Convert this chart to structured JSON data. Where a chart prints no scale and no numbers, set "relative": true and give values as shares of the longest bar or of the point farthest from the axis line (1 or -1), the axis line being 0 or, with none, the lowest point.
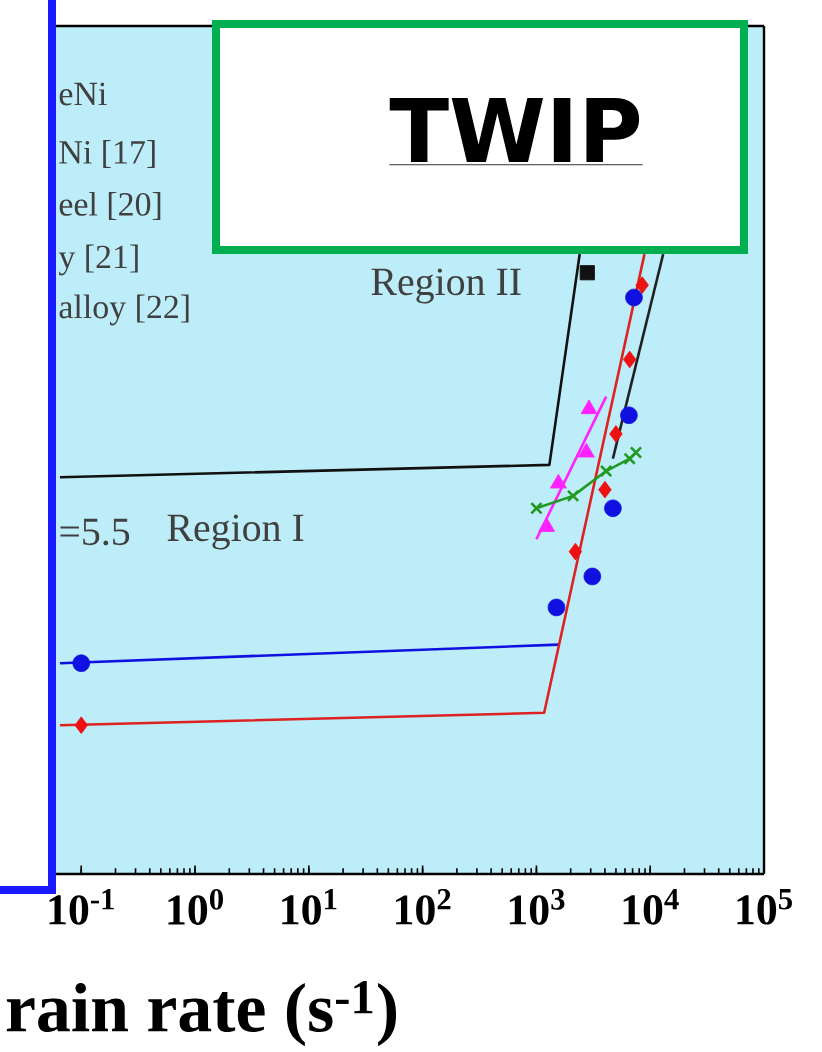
{
  "chart_data": {
    "type": "line",
    "relative": true,
    "log": "x",
    "tick_labels": "x",
    "xlabel": "rain rate (s$^{-1}$)",
    "xlim": [
      0.06,
      100000
    ],
    "xticks": [
      {
        "value": 0.1,
        "label": "10$^{-1}$"
      },
      {
        "value": 1,
        "label": "10$^{0}$"
      },
      {
        "value": 10,
        "label": "10$^{1}$"
      },
      {
        "value": 100,
        "label": "10$^{2}$"
      },
      {
        "value": 1000,
        "label": "10$^{3}$"
      },
      {
        "value": 10000,
        "label": "10$^{4}$"
      },
      {
        "value": 100000,
        "label": "10$^{5}$"
      }
    ],
    "annotations": [
      "eNi",
      "Ni [17]",
      "eel [20]",
      "y [21]",
      "alloy [22]",
      "=5.5",
      "Region I",
      "Region II",
      "TWIP"
    ],
    "series": [
      {
        "type": "line",
        "color": "#111111",
        "marker": "none",
        "x": [
          0.065,
          1300,
          2400
        ],
        "values": [
          0.64,
          0.66,
          1.0
        ]
      },
      {
        "type": "scatter",
        "color": "#111111",
        "marker": "square",
        "x": [
          2800
        ],
        "values": [
          0.97
        ]
      },
      {
        "type": "line",
        "color": "#1010e0",
        "marker": "none",
        "x": [
          0.065,
          1560
        ],
        "values": [
          0.34,
          0.37
        ]
      },
      {
        "type": "scatter",
        "color": "#1010e0",
        "marker": "circle",
        "x": [
          0.1,
          1500,
          3100,
          4700,
          6500,
          7200
        ],
        "values": [
          0.34,
          0.43,
          0.48,
          0.59,
          0.74,
          0.93
        ]
      },
      {
        "type": "line",
        "color": "#dd2222",
        "marker": "none",
        "x": [
          0.065,
          1170,
          8900
        ],
        "values": [
          0.24,
          0.26,
          1.0
        ]
      },
      {
        "type": "scatter",
        "color": "#ee1111",
        "marker": "diamond",
        "x": [
          0.1,
          2200,
          4000,
          5000,
          6600,
          8500
        ],
        "values": [
          0.24,
          0.52,
          0.62,
          0.71,
          0.83,
          0.95
        ]
      },
      {
        "type": "line",
        "color": "#222222",
        "marker": "none",
        "x": [
          4700,
          13000
        ],
        "values": [
          0.67,
          1.0
        ]
      },
      {
        "type": "line",
        "color": "#ff22ff",
        "marker": "none",
        "x": [
          1000,
          4100
        ],
        "values": [
          0.54,
          0.77
        ]
      },
      {
        "type": "scatter",
        "color": "#ff22ff",
        "marker": "triangle",
        "x": [
          1230,
          1560,
          2750,
          2900
        ],
        "values": [
          0.56,
          0.63,
          0.68,
          0.75
        ]
      },
      {
        "type": "line",
        "color": "#229922",
        "marker": "cross",
        "x": [
          1000,
          2100,
          4100,
          6600,
          7500
        ],
        "values": [
          0.59,
          0.61,
          0.65,
          0.67,
          0.68
        ]
      }
    ]
  }
}
